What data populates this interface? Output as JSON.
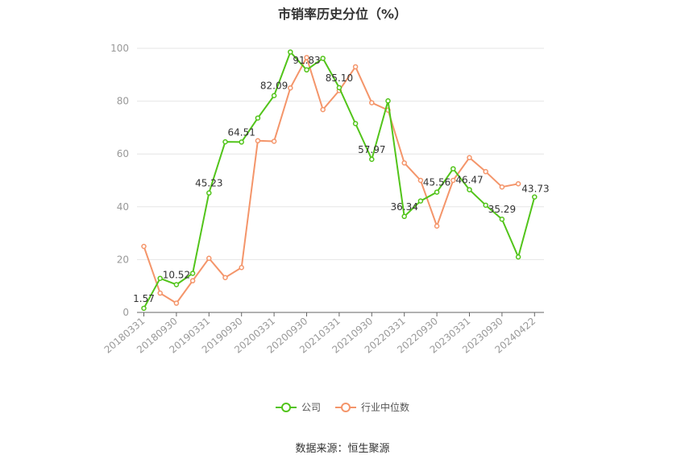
{
  "chart_data": {
    "type": "line",
    "title": "市销率历史分位（%）",
    "ylim": [
      0,
      100
    ],
    "yticks": [
      0,
      20,
      40,
      60,
      80,
      100
    ],
    "tick_labels": [
      "20180331",
      "20180930",
      "20190331",
      "20190930",
      "20200331",
      "20200930",
      "20210331",
      "20210930",
      "20220331",
      "20220930",
      "20230331",
      "20230930",
      "20240422"
    ],
    "series": [
      {
        "name": "公司",
        "color": "#52c41a",
        "points": [
          {
            "i": 0,
            "y": 1.57,
            "label": "1.57"
          },
          {
            "i": 1,
            "y": 12.9
          },
          {
            "i": 2,
            "y": 10.52,
            "label": "10.52"
          },
          {
            "i": 3,
            "y": 14.8
          },
          {
            "i": 4,
            "y": 45.23,
            "label": "45.23"
          },
          {
            "i": 5,
            "y": 64.6
          },
          {
            "i": 6,
            "y": 64.51,
            "label": "64.51"
          },
          {
            "i": 7,
            "y": 73.6
          },
          {
            "i": 8,
            "y": 82.09,
            "label": "82.09"
          },
          {
            "i": 9,
            "y": 98.6
          },
          {
            "i": 10,
            "y": 91.83,
            "label": "91.83"
          },
          {
            "i": 11,
            "y": 96.2
          },
          {
            "i": 12,
            "y": 85.1,
            "label": "85.10"
          },
          {
            "i": 13,
            "y": 71.5
          },
          {
            "i": 14,
            "y": 57.97,
            "label": "57.97"
          },
          {
            "i": 15,
            "y": 80.1
          },
          {
            "i": 16,
            "y": 36.34,
            "label": "36.34"
          },
          {
            "i": 17,
            "y": 42.2
          },
          {
            "i": 18,
            "y": 45.56,
            "label": "45.56"
          },
          {
            "i": 19,
            "y": 54.4
          },
          {
            "i": 20,
            "y": 46.47,
            "label": "46.47"
          },
          {
            "i": 21,
            "y": 40.6
          },
          {
            "i": 22,
            "y": 35.29,
            "label": "35.29"
          },
          {
            "i": 23,
            "y": 21.0
          },
          {
            "i": 24,
            "y": 43.73,
            "label": "43.73"
          }
        ]
      },
      {
        "name": "行业中位数",
        "color": "#f4956a",
        "points": [
          {
            "i": 0,
            "y": 25.0
          },
          {
            "i": 1,
            "y": 7.3
          },
          {
            "i": 2,
            "y": 3.5
          },
          {
            "i": 3,
            "y": 12.0
          },
          {
            "i": 4,
            "y": 20.5
          },
          {
            "i": 5,
            "y": 13.2
          },
          {
            "i": 6,
            "y": 17.0
          },
          {
            "i": 7,
            "y": 65.0
          },
          {
            "i": 8,
            "y": 64.8
          },
          {
            "i": 9,
            "y": 85.0
          },
          {
            "i": 10,
            "y": 96.5
          },
          {
            "i": 11,
            "y": 76.8
          },
          {
            "i": 12,
            "y": 84.0
          },
          {
            "i": 13,
            "y": 93.0
          },
          {
            "i": 14,
            "y": 79.4
          },
          {
            "i": 15,
            "y": 76.6
          },
          {
            "i": 16,
            "y": 56.6
          },
          {
            "i": 17,
            "y": 50.0
          },
          {
            "i": 18,
            "y": 32.7
          },
          {
            "i": 19,
            "y": 50.0
          },
          {
            "i": 20,
            "y": 58.6
          },
          {
            "i": 21,
            "y": 53.3
          },
          {
            "i": 22,
            "y": 47.5
          },
          {
            "i": 23,
            "y": 48.7
          }
        ]
      }
    ],
    "grid": true,
    "legend_position": "bottom"
  },
  "legend": {
    "company": "公司",
    "industry": "行业中位数"
  },
  "source": "数据来源：恒生聚源"
}
